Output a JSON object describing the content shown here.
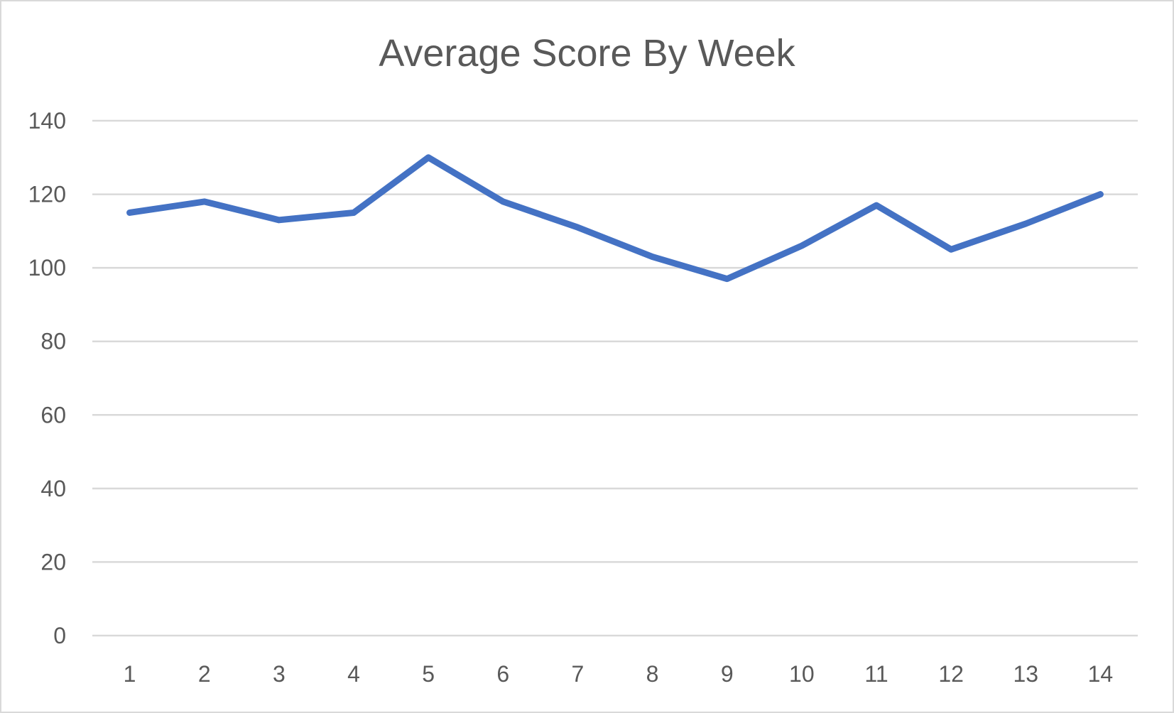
{
  "chart_data": {
    "type": "line",
    "title": "Average Score By Week",
    "xlabel": "",
    "ylabel": "",
    "categories": [
      "1",
      "2",
      "3",
      "4",
      "5",
      "6",
      "7",
      "8",
      "9",
      "10",
      "11",
      "12",
      "13",
      "14"
    ],
    "series": [
      {
        "values": [
          115,
          118,
          113,
          115,
          130,
          118,
          111,
          103,
          97,
          106,
          117,
          105,
          112,
          120
        ],
        "color": "#4472c4"
      }
    ],
    "ylim": [
      0,
      140
    ],
    "yticks": [
      0,
      20,
      40,
      60,
      80,
      100,
      120,
      140
    ],
    "grid": true,
    "gridline_color": "#d9d9d9",
    "legend": "none"
  }
}
